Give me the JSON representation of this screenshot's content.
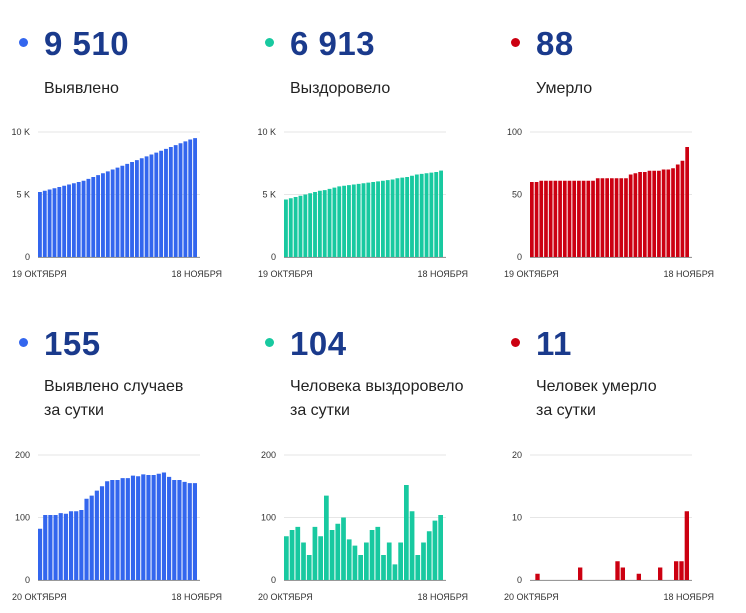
{
  "colors": {
    "blue": "#3366ee",
    "green": "#18c9a0",
    "red": "#cc0011",
    "number": "#1a3a8c"
  },
  "panels": [
    {
      "number": "9 510",
      "label1": "Выявлено",
      "label2": "",
      "color": "#3366ee",
      "chart_data": {
        "type": "bar",
        "yticks": [
          "10 K",
          "5 K",
          "0"
        ],
        "ylim": [
          0,
          10000
        ],
        "xlabel_start": "19 ОКТЯБРЯ",
        "xlabel_end": "18 НОЯБРЯ",
        "values": [
          5200,
          5300,
          5400,
          5500,
          5600,
          5700,
          5800,
          5900,
          6000,
          6100,
          6250,
          6400,
          6550,
          6700,
          6850,
          7000,
          7150,
          7300,
          7450,
          7600,
          7750,
          7900,
          8050,
          8200,
          8350,
          8500,
          8650,
          8800,
          8950,
          9100,
          9250,
          9400,
          9510
        ]
      }
    },
    {
      "number": "6 913",
      "label1": "Выздоровело",
      "label2": "",
      "color": "#18c9a0",
      "chart_data": {
        "type": "bar",
        "yticks": [
          "10 K",
          "5 K",
          "0"
        ],
        "ylim": [
          0,
          10000
        ],
        "xlabel_start": "19 ОКТЯБРЯ",
        "xlabel_end": "18 НОЯБРЯ",
        "values": [
          4600,
          4700,
          4800,
          4900,
          5000,
          5100,
          5200,
          5300,
          5350,
          5450,
          5550,
          5650,
          5700,
          5750,
          5800,
          5850,
          5900,
          5950,
          6000,
          6050,
          6100,
          6150,
          6200,
          6300,
          6350,
          6400,
          6500,
          6600,
          6650,
          6700,
          6750,
          6800,
          6913
        ]
      }
    },
    {
      "number": "88",
      "label1": "Умерло",
      "label2": "",
      "color": "#cc0011",
      "chart_data": {
        "type": "bar",
        "yticks": [
          "100",
          "50",
          "0"
        ],
        "ylim": [
          0,
          100
        ],
        "xlabel_start": "19 ОКТЯБРЯ",
        "xlabel_end": "18 НОЯБРЯ",
        "values": [
          60,
          60,
          61,
          61,
          61,
          61,
          61,
          61,
          61,
          61,
          61,
          61,
          61,
          61,
          63,
          63,
          63,
          63,
          63,
          63,
          63,
          66,
          67,
          68,
          68,
          69,
          69,
          69,
          70,
          70,
          71,
          74,
          77,
          88
        ]
      }
    },
    {
      "number": "155",
      "label1": "Выявлено случаев",
      "label2": "за сутки",
      "color": "#3366ee",
      "chart_data": {
        "type": "bar",
        "yticks": [
          "200",
          "100",
          "0"
        ],
        "ylim": [
          0,
          200
        ],
        "xlabel_start": "20 ОКТЯБРЯ",
        "xlabel_end": "18 НОЯБРЯ",
        "values": [
          82,
          104,
          104,
          104,
          107,
          106,
          110,
          110,
          112,
          130,
          135,
          143,
          150,
          158,
          160,
          160,
          163,
          163,
          167,
          166,
          169,
          168,
          168,
          170,
          172,
          165,
          160,
          160,
          157,
          155,
          155
        ]
      }
    },
    {
      "number": "104",
      "label1": "Человека выздоровело",
      "label2": "за сутки",
      "color": "#18c9a0",
      "chart_data": {
        "type": "bar",
        "yticks": [
          "200",
          "100",
          "0"
        ],
        "ylim": [
          0,
          200
        ],
        "xlabel_start": "20 ОКТЯБРЯ",
        "xlabel_end": "18 НОЯБРЯ",
        "values": [
          70,
          80,
          85,
          60,
          40,
          85,
          70,
          135,
          80,
          90,
          100,
          65,
          55,
          40,
          60,
          80,
          85,
          40,
          60,
          25,
          60,
          152,
          110,
          40,
          60,
          78,
          95,
          104
        ]
      }
    },
    {
      "number": "11",
      "label1": "Человек умерло",
      "label2": "за сутки",
      "color": "#cc0011",
      "chart_data": {
        "type": "bar",
        "yticks": [
          "20",
          "10",
          "0"
        ],
        "ylim": [
          0,
          20
        ],
        "xlabel_start": "20 ОКТЯБРЯ",
        "xlabel_end": "18 НОЯБРЯ",
        "values": [
          0,
          1,
          0,
          0,
          0,
          0,
          0,
          0,
          0,
          2,
          0,
          0,
          0,
          0,
          0,
          0,
          3,
          2,
          0,
          0,
          1,
          0,
          0,
          0,
          2,
          0,
          0,
          3,
          3,
          11
        ]
      }
    }
  ]
}
